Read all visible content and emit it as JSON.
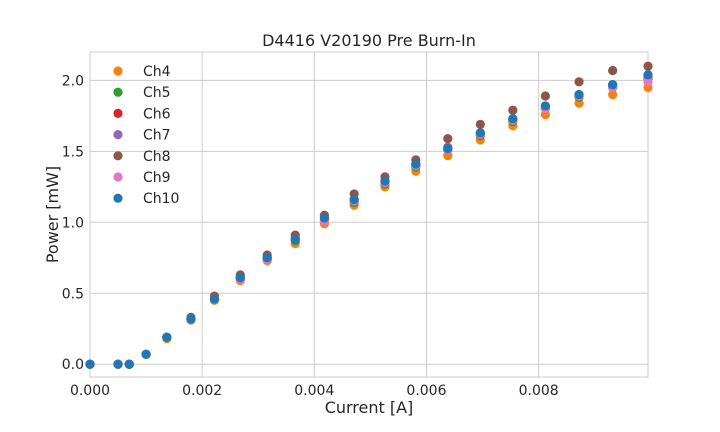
{
  "chart_data": {
    "type": "scatter",
    "title": "D4416 V20190 Pre Burn-In",
    "xlabel": "Current [A]",
    "ylabel": "Power [mW]",
    "xlim": [
      0,
      0.00995
    ],
    "ylim": [
      -0.09,
      2.2
    ],
    "x_ticks": [
      0,
      0.002,
      0.004,
      0.006,
      0.008
    ],
    "x_tick_labels": [
      "0.000",
      "0.002",
      "0.004",
      "0.006",
      "0.008"
    ],
    "y_ticks": [
      0,
      0.5,
      1,
      1.5,
      2
    ],
    "y_tick_labels": [
      "0.0",
      "0.5",
      "1.0",
      "1.5",
      "2.0"
    ],
    "grid": true,
    "legend_position": "top-left",
    "x": [
      0,
      0.0005,
      0.0007,
      0.001,
      0.00137,
      0.0018,
      0.00222,
      0.00268,
      0.00316,
      0.00366,
      0.00418,
      0.00471,
      0.00526,
      0.00581,
      0.00638,
      0.00696,
      0.00754,
      0.00812,
      0.00872,
      0.00932,
      0.00995
    ],
    "series": [
      {
        "name": "Ch4",
        "color": "#ff7f0e",
        "values": [
          0,
          0,
          0,
          0.07,
          0.18,
          0.31,
          0.45,
          0.59,
          0.73,
          0.85,
          0.99,
          1.12,
          1.25,
          1.36,
          1.47,
          1.58,
          1.68,
          1.76,
          1.84,
          1.9,
          1.95
        ]
      },
      {
        "name": "Ch5",
        "color": "#2ca02c",
        "values": [
          0,
          0,
          0,
          0.07,
          0.19,
          0.32,
          0.46,
          0.6,
          0.74,
          0.87,
          1.02,
          1.14,
          1.27,
          1.39,
          1.51,
          1.61,
          1.71,
          1.8,
          1.88,
          1.95,
          2.01
        ]
      },
      {
        "name": "Ch6",
        "color": "#d62728",
        "values": [
          0,
          0,
          0,
          0.07,
          0.19,
          0.32,
          0.46,
          0.61,
          0.75,
          0.88,
          1.03,
          1.15,
          1.28,
          1.4,
          1.52,
          1.62,
          1.72,
          1.81,
          1.89,
          1.96,
          2.02
        ]
      },
      {
        "name": "Ch7",
        "color": "#9467bd",
        "values": [
          0,
          0,
          0,
          0.07,
          0.19,
          0.32,
          0.46,
          0.61,
          0.75,
          0.89,
          1.03,
          1.16,
          1.29,
          1.41,
          1.53,
          1.63,
          1.73,
          1.82,
          1.9,
          1.97,
          2.03
        ]
      },
      {
        "name": "Ch8",
        "color": "#8c564b",
        "values": [
          0,
          0,
          0,
          0.07,
          0.19,
          0.33,
          0.48,
          0.63,
          0.77,
          0.91,
          1.05,
          1.2,
          1.32,
          1.44,
          1.59,
          1.69,
          1.79,
          1.89,
          1.99,
          2.07,
          2.1
        ]
      },
      {
        "name": "Ch9",
        "color": "#e377c2",
        "values": [
          0,
          0,
          0,
          0.07,
          0.19,
          0.32,
          0.46,
          0.6,
          0.74,
          0.88,
          1.01,
          1.15,
          1.28,
          1.4,
          1.51,
          1.62,
          1.72,
          1.8,
          1.89,
          1.95,
          1.99
        ]
      },
      {
        "name": "Ch10",
        "color": "#1f77b4",
        "values": [
          0,
          0,
          0,
          0.07,
          0.19,
          0.32,
          0.46,
          0.61,
          0.75,
          0.88,
          1.03,
          1.16,
          1.29,
          1.41,
          1.52,
          1.63,
          1.73,
          1.82,
          1.9,
          1.97,
          2.04
        ]
      }
    ]
  }
}
